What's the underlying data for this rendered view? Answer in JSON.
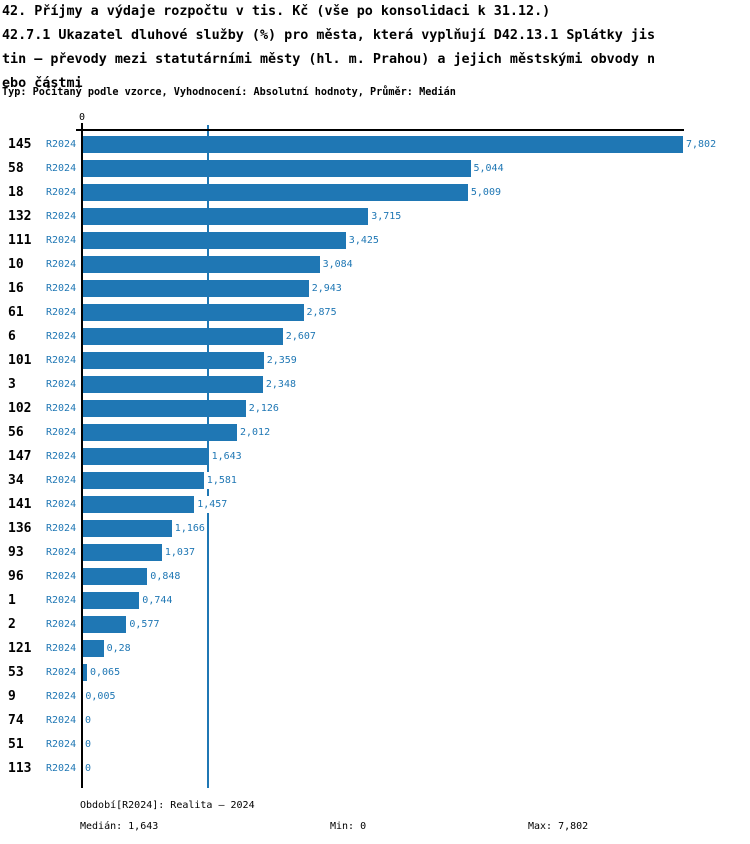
{
  "header": {
    "title_lines": [
      "42. Příjmy a výdaje rozpočtu v tis. Kč (vše po konsolidaci k 31.12.)",
      "42.7.1 Ukazatel dluhové služby (%) pro města, která vyplňují D42.13.1 Splátky jis",
      "tin – převody mezi statutárními městy (hl. m. Prahou) a jejich městskými obvody n",
      "ebo částmi"
    ],
    "subtitle": "Typ: Počítaný podle vzorce, Vyhodnocení: Absolutní hodnoty, Průměr: Medián"
  },
  "colors": {
    "bar": "#1f77b4",
    "accent_text": "#1f77b4",
    "axis": "#000000",
    "category_text": "#000000",
    "background": "#ffffff"
  },
  "chart_data": {
    "type": "bar",
    "orientation": "horizontal",
    "grid": false,
    "legend_position": "none",
    "series_name": "R2024",
    "x_axis": {
      "origin_label": "0",
      "min": 0,
      "max": 7.802
    },
    "categories": [
      "145",
      "58",
      "18",
      "132",
      "111",
      "10",
      "16",
      "61",
      "6",
      "101",
      "3",
      "102",
      "56",
      "147",
      "34",
      "141",
      "136",
      "93",
      "96",
      "1",
      "2",
      "121",
      "53",
      "9",
      "74",
      "51",
      "113"
    ],
    "values": [
      7.802,
      5.044,
      5.009,
      3.715,
      3.425,
      3.084,
      2.943,
      2.875,
      2.607,
      2.359,
      2.348,
      2.126,
      2.012,
      1.643,
      1.581,
      1.457,
      1.166,
      1.037,
      0.848,
      0.744,
      0.577,
      0.28,
      0.065,
      0.005,
      0,
      0,
      0
    ],
    "value_labels": [
      "7,802",
      "5,044",
      "5,009",
      "3,715",
      "3,425",
      "3,084",
      "2,943",
      "2,875",
      "2,607",
      "2,359",
      "2,348",
      "2,126",
      "2,012",
      "1,643",
      "1,581",
      "1,457",
      "1,166",
      "1,037",
      "0,848",
      "0,744",
      "0,577",
      "0,28",
      "0,065",
      "0,005",
      "0",
      "0",
      "0"
    ],
    "median": 1.643,
    "median_label": "1,643"
  },
  "footer": {
    "period": "Období[R2024]: Realita – 2024",
    "median": "Medián: 1,643",
    "min": "Min: 0",
    "max": "Max: 7,802"
  }
}
